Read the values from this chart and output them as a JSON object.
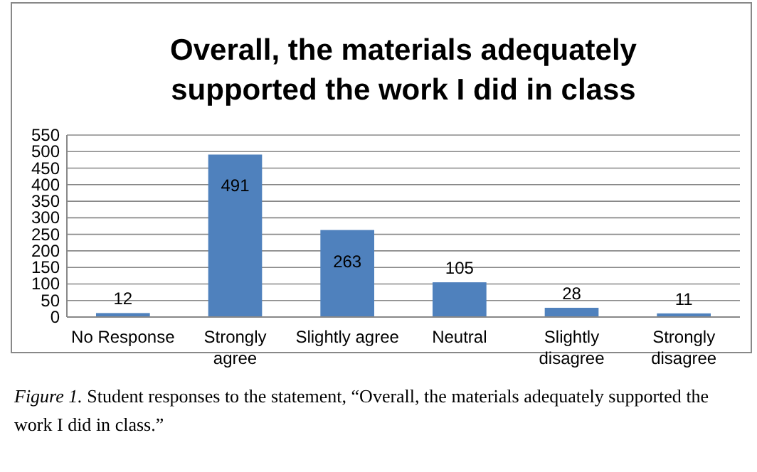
{
  "chart_data": {
    "type": "bar",
    "title": "Overall, the materials adequately supported the work I did in class",
    "categories": [
      "No Response",
      "Strongly agree",
      "Slightly agree",
      "Neutral",
      "Slightly disagree",
      "Strongly disagree"
    ],
    "values": [
      12,
      491,
      263,
      105,
      28,
      11
    ],
    "color": "#4f81bd",
    "ylim": [
      0,
      550
    ],
    "yticks": [
      0,
      50,
      100,
      150,
      200,
      250,
      300,
      350,
      400,
      450,
      500,
      550
    ],
    "grid": "y",
    "data_labels": true,
    "annotations": [
      "Figure 1. Student responses to the statement, “Overall, the materials adequately supported the work I did in class.”"
    ]
  }
}
